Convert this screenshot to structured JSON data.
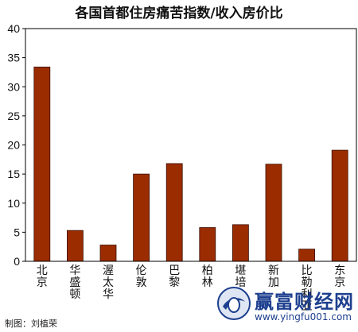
{
  "chart_data": {
    "type": "bar",
    "title": "各国首都住房痛苦指数/收入房价比",
    "categories": [
      "北京",
      "华盛顿",
      "渥太华",
      "伦敦",
      "巴黎",
      "柏林",
      "堪培",
      "新加",
      "比勒利亚",
      "东京"
    ],
    "values": [
      33.4,
      5.3,
      2.8,
      15.0,
      16.8,
      5.8,
      6.3,
      16.7,
      2.1,
      19.1
    ],
    "ylim": [
      0,
      40
    ],
    "yticks": [
      0,
      5,
      10,
      15,
      20,
      25,
      30,
      35,
      40
    ],
    "grid": false,
    "bar_color": "#9b2c00",
    "xlabel": "",
    "ylabel": ""
  },
  "credit": "制图：刘植荣",
  "watermark": {
    "name": "赢富财经网",
    "url": "www.yingfu001.com",
    "color": "#1d3f8f"
  }
}
